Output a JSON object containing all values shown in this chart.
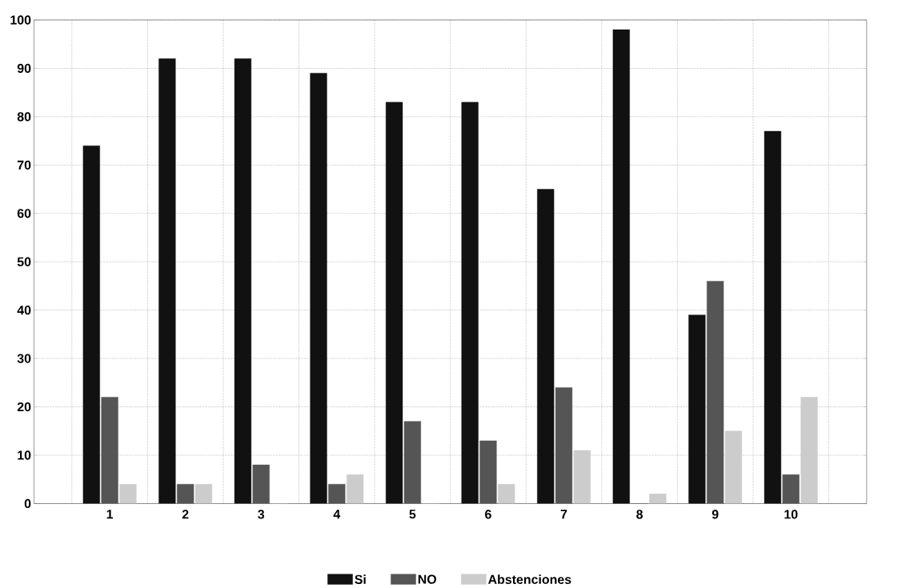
{
  "chart_data": {
    "type": "bar",
    "categories": [
      "1",
      "2",
      "3",
      "4",
      "5",
      "6",
      "7",
      "8",
      "9",
      "10"
    ],
    "series": [
      {
        "name": "Si",
        "color": "#111111",
        "values": [
          74,
          92,
          92,
          89,
          83,
          83,
          65,
          98,
          39,
          77
        ]
      },
      {
        "name": "NO",
        "color": "#555555",
        "values": [
          22,
          4,
          8,
          4,
          17,
          13,
          24,
          0,
          46,
          6
        ]
      },
      {
        "name": "Abstenciones",
        "color": "#cccccc",
        "values": [
          4,
          4,
          0,
          6,
          0,
          4,
          11,
          2,
          15,
          22
        ]
      }
    ],
    "ylim": [
      0,
      100
    ],
    "yticks": [
      0,
      10,
      20,
      30,
      40,
      50,
      60,
      70,
      80,
      90,
      100
    ],
    "grid": true,
    "legend": "bottom"
  }
}
